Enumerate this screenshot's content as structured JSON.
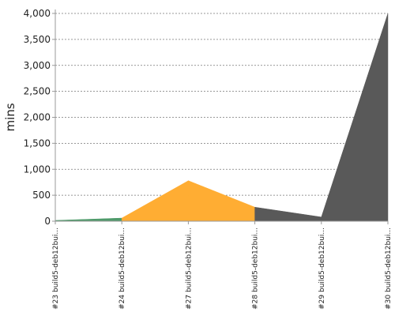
{
  "chart_data": {
    "type": "area",
    "title": "",
    "xlabel": "",
    "ylabel": "mins",
    "ylim": [
      0,
      4000
    ],
    "yticks": [
      0,
      500,
      1000,
      1500,
      2000,
      2500,
      3000,
      3500,
      4000
    ],
    "ytick_labels": [
      "0",
      "500",
      "1,000",
      "1,500",
      "2,000",
      "2,500",
      "3,000",
      "3,500",
      "4,000"
    ],
    "grid": true,
    "x": [
      "#23 build5-deb12bui...",
      "#24 build5-deb12bui...",
      "#27 build5-deb12bui...",
      "#28 build5-deb12bui...",
      "#29 build5-deb12bui...",
      "#30 build5-deb12bui..."
    ],
    "values": [
      15,
      60,
      780,
      270,
      80,
      4000
    ],
    "status_colors": [
      "#4e9a6a",
      "#ffad33",
      "#ffad33",
      "#595959",
      "#595959",
      "#595959"
    ]
  }
}
